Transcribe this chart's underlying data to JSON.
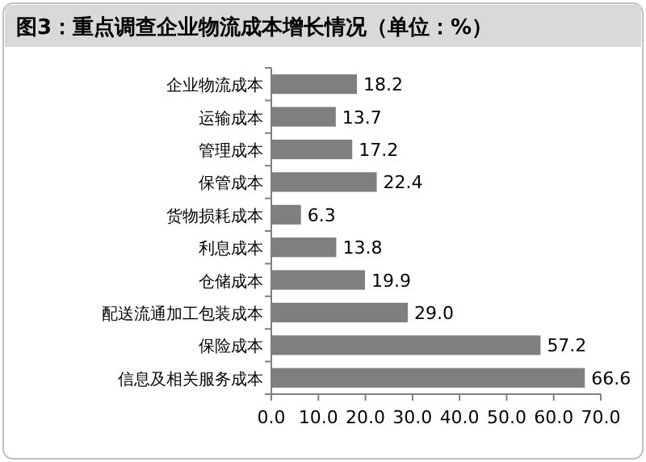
{
  "chart_data": {
    "type": "bar",
    "orientation": "horizontal",
    "title": "图3：重点调查企业物流成本增长情况（单位：%）",
    "categories": [
      "企业物流成本",
      "运输成本",
      "管理成本",
      "保管成本",
      "货物损耗成本",
      "利息成本",
      "仓储成本",
      "配送流通加工包装成本",
      "保险成本",
      "信息及相关服务成本"
    ],
    "values": [
      18.2,
      13.7,
      17.2,
      22.4,
      6.3,
      13.8,
      19.9,
      29.0,
      57.2,
      66.6
    ],
    "value_labels": [
      "18.2",
      "13.7",
      "17.2",
      "22.4",
      "6.3",
      "13.8",
      "19.9",
      "29.0",
      "57.2",
      "66.6"
    ],
    "color": "#7f7f7f",
    "xlim": [
      0,
      70
    ],
    "xticks": [
      {
        "value": 0,
        "label": "0.0"
      },
      {
        "value": 10,
        "label": "10.0"
      },
      {
        "value": 20,
        "label": "20.0"
      },
      {
        "value": 30,
        "label": "30.0"
      },
      {
        "value": 40,
        "label": "40.0"
      },
      {
        "value": 50,
        "label": "50.0"
      },
      {
        "value": 60,
        "label": "60.0"
      },
      {
        "value": 70,
        "label": "70.0"
      }
    ]
  }
}
